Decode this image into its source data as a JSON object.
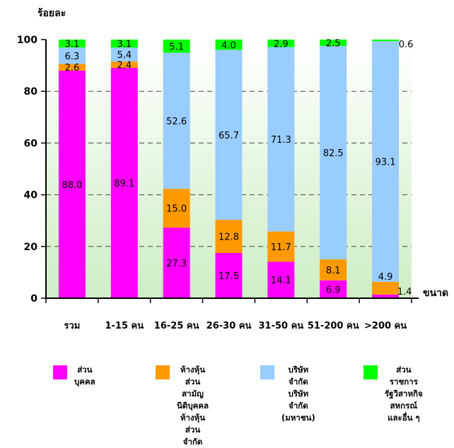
{
  "chart_data": {
    "type": "bar",
    "stacked": true,
    "ylabel": "ร้อยละ",
    "xlabel": "ขนาด",
    "ylim": [
      0,
      100
    ],
    "yticks": [
      0,
      20,
      40,
      60,
      80,
      100
    ],
    "grid": true,
    "categories": [
      "รวม",
      "1-15 คน",
      "16-25 คน",
      "26-30 คน",
      "31-50 คน",
      "51-200 คน",
      ">200 คน"
    ],
    "series": [
      {
        "name": "ส่วนบุคคล",
        "color": "#ff00ff",
        "values": [
          88.0,
          89.1,
          27.3,
          17.5,
          14.1,
          6.9,
          1.4
        ]
      },
      {
        "name": "ห้างหุ้นส่วนสามัญนิติบุคคล ห้างหุ้นส่วนจำกัด",
        "color": "#ff9900",
        "values": [
          2.6,
          2.4,
          15.0,
          12.8,
          11.7,
          8.1,
          4.9
        ]
      },
      {
        "name": "บริษัทจำกัด บริษัทจำกัด (มหาชน)",
        "color": "#99ccff",
        "values": [
          6.3,
          5.4,
          52.6,
          65.7,
          71.3,
          82.5,
          93.1
        ]
      },
      {
        "name": "ส่วนราชการ รัฐวิสาหกิจ สหกรณ์ และอื่น ๆ",
        "color": "#00ff00",
        "values": [
          3.1,
          3.1,
          5.1,
          4.0,
          2.9,
          2.5,
          0.6
        ]
      }
    ],
    "labels": [
      [
        "88.0",
        "2.6",
        "6.3",
        "3.1"
      ],
      [
        "89.1",
        "2.4",
        "5.4",
        "3.1"
      ],
      [
        "27.3",
        "15.0",
        "52.6",
        "5.1"
      ],
      [
        "17.5",
        "12.8",
        "65.7",
        "4.0"
      ],
      [
        "14.1",
        "11.7",
        "71.3",
        "2.9"
      ],
      [
        "6.9",
        "8.1",
        "82.5",
        "2.5"
      ],
      [
        "1.4",
        "4.9",
        "93.1",
        "0.6"
      ]
    ],
    "legend_position": "bottom"
  },
  "legend": [
    {
      "lines": [
        "ส่วนบุคคล"
      ],
      "color": "#ff00ff"
    },
    {
      "lines": [
        "ห้างหุ้นส่วนสามัญ",
        "นิติบุคคล",
        "ห้างหุ้นส่วน",
        "จำกัด"
      ],
      "color": "#ff9900"
    },
    {
      "lines": [
        "บริษัทจำกัด",
        "บริษัทจำกัด",
        "(มหาชน)"
      ],
      "color": "#99ccff"
    },
    {
      "lines": [
        "ส่วนราชการ",
        "รัฐวิสาหกิจ",
        "สหกรณ์",
        "และอื่น ๆ"
      ],
      "color": "#00ff00"
    }
  ]
}
